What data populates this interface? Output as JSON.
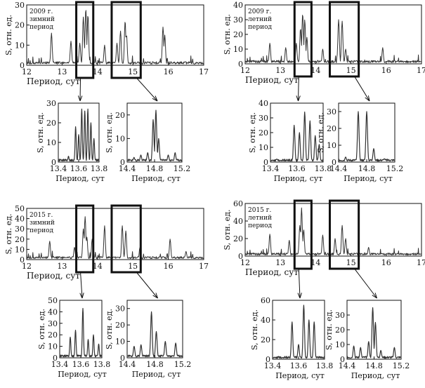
{
  "figure": {
    "x_label": "Период, сут",
    "y_label": "S, отн. ед."
  },
  "chart_data": [
    {
      "id": "w2009-main",
      "type": "line",
      "panel": "main",
      "group": "w2009",
      "annotation": [
        "2009 г.",
        "зимний",
        "период"
      ],
      "xlim": [
        12,
        17
      ],
      "ylim": [
        0,
        30
      ],
      "xticks": [
        12,
        13,
        14,
        15,
        16,
        17
      ],
      "yticks": [
        0,
        10,
        20,
        30
      ],
      "peaks": [
        [
          12.7,
          16
        ],
        [
          13.25,
          12
        ],
        [
          13.5,
          11
        ],
        [
          13.6,
          24
        ],
        [
          13.67,
          28
        ],
        [
          13.73,
          25
        ],
        [
          14.2,
          10
        ],
        [
          14.55,
          11
        ],
        [
          14.65,
          17
        ],
        [
          14.78,
          22
        ],
        [
          14.82,
          15
        ],
        [
          15.85,
          19
        ],
        [
          15.9,
          15
        ]
      ],
      "highlight_boxes": [
        [
          13.4,
          13.88
        ],
        [
          14.4,
          15.22
        ]
      ]
    },
    {
      "id": "s2009-main",
      "type": "line",
      "panel": "main",
      "group": "s2009",
      "annotation": [
        "2009 г.",
        "летний",
        "период"
      ],
      "xlim": [
        12,
        17
      ],
      "ylim": [
        0,
        40
      ],
      "xticks": [
        12,
        13,
        14,
        15,
        16,
        17
      ],
      "yticks": [
        0,
        10,
        20,
        30,
        40
      ],
      "peaks": [
        [
          12.7,
          14
        ],
        [
          13.15,
          11
        ],
        [
          13.45,
          14
        ],
        [
          13.57,
          24
        ],
        [
          13.63,
          34
        ],
        [
          13.69,
          30
        ],
        [
          13.75,
          18
        ],
        [
          14.2,
          10
        ],
        [
          14.65,
          30
        ],
        [
          14.75,
          29
        ],
        [
          14.85,
          10
        ],
        [
          15.9,
          11
        ]
      ],
      "highlight_boxes": [
        [
          13.4,
          13.88
        ],
        [
          14.4,
          15.22
        ]
      ]
    },
    {
      "id": "w2009-zoom1",
      "type": "line",
      "panel": "zoom",
      "group": "w2009",
      "xlim": [
        13.4,
        13.8
      ],
      "ylim": [
        0,
        30
      ],
      "xticks": [
        13.4,
        13.6,
        13.8
      ],
      "yticks": [
        0,
        10,
        20,
        30
      ],
      "peaks": [
        [
          13.5,
          3
        ],
        [
          13.57,
          18
        ],
        [
          13.6,
          14
        ],
        [
          13.63,
          27
        ],
        [
          13.66,
          26
        ],
        [
          13.69,
          27
        ],
        [
          13.72,
          20
        ],
        [
          13.75,
          12
        ]
      ]
    },
    {
      "id": "w2009-zoom2",
      "type": "line",
      "panel": "zoom",
      "group": "w2009",
      "xlim": [
        14.4,
        15.2
      ],
      "ylim": [
        0,
        25
      ],
      "xticks": [
        14.4,
        14.8,
        15.2
      ],
      "yticks": [
        0,
        10,
        20
      ],
      "peaks": [
        [
          14.5,
          2
        ],
        [
          14.6,
          3
        ],
        [
          14.7,
          4
        ],
        [
          14.78,
          18
        ],
        [
          14.82,
          22
        ],
        [
          14.86,
          10
        ],
        [
          15.0,
          3
        ],
        [
          15.1,
          4
        ]
      ]
    },
    {
      "id": "s2009-zoom1",
      "type": "line",
      "panel": "zoom",
      "group": "s2009",
      "xlim": [
        13.4,
        13.8
      ],
      "ylim": [
        0,
        40
      ],
      "xticks": [
        13.4,
        13.6,
        13.8
      ],
      "yticks": [
        0,
        10,
        20,
        30,
        40
      ],
      "peaks": [
        [
          13.45,
          2
        ],
        [
          13.58,
          25
        ],
        [
          13.62,
          20
        ],
        [
          13.66,
          34
        ],
        [
          13.7,
          28
        ],
        [
          13.74,
          18
        ],
        [
          13.77,
          12
        ]
      ]
    },
    {
      "id": "s2009-zoom2",
      "type": "line",
      "panel": "zoom",
      "group": "s2009",
      "xlim": [
        14.4,
        15.2
      ],
      "ylim": [
        0,
        35
      ],
      "xticks": [
        14.4,
        14.8,
        15.2
      ],
      "yticks": [
        0,
        10,
        20,
        30
      ],
      "peaks": [
        [
          14.5,
          3
        ],
        [
          14.68,
          30
        ],
        [
          14.8,
          30
        ],
        [
          14.9,
          8
        ],
        [
          15.05,
          2
        ]
      ]
    },
    {
      "id": "w2015-main",
      "type": "line",
      "panel": "main",
      "group": "w2015",
      "annotation": [
        "2015 г.",
        "зимний",
        "период"
      ],
      "xlim": [
        12,
        17
      ],
      "ylim": [
        0,
        50
      ],
      "xticks": [
        12,
        13,
        14,
        15,
        16,
        17
      ],
      "yticks": [
        0,
        10,
        20,
        30,
        40,
        50
      ],
      "peaks": [
        [
          12.65,
          18
        ],
        [
          13.35,
          12
        ],
        [
          13.6,
          30
        ],
        [
          13.65,
          42
        ],
        [
          13.7,
          22
        ],
        [
          13.85,
          20
        ],
        [
          14.2,
          33
        ],
        [
          14.7,
          33
        ],
        [
          14.8,
          28
        ],
        [
          15.2,
          12
        ],
        [
          16.05,
          20
        ],
        [
          16.5,
          8
        ]
      ],
      "highlight_boxes": [
        [
          13.4,
          13.88
        ],
        [
          14.4,
          15.22
        ]
      ]
    },
    {
      "id": "s2015-main",
      "type": "line",
      "panel": "main",
      "group": "s2015",
      "annotation": [
        "2015 г.",
        "летний",
        "период"
      ],
      "xlim": [
        12,
        17
      ],
      "ylim": [
        0,
        60
      ],
      "xticks": [
        12,
        13,
        14,
        15,
        16,
        17
      ],
      "yticks": [
        0,
        20,
        40,
        60
      ],
      "peaks": [
        [
          12.7,
          25
        ],
        [
          13.25,
          18
        ],
        [
          13.55,
          35
        ],
        [
          13.6,
          55
        ],
        [
          13.66,
          30
        ],
        [
          14.2,
          24
        ],
        [
          14.55,
          20
        ],
        [
          14.75,
          35
        ],
        [
          14.85,
          20
        ],
        [
          15.5,
          10
        ]
      ],
      "highlight_boxes": [
        [
          13.4,
          13.88
        ],
        [
          14.4,
          15.22
        ]
      ]
    },
    {
      "id": "w2015-zoom1",
      "type": "line",
      "panel": "zoom",
      "group": "w2015",
      "xlim": [
        13.4,
        13.8
      ],
      "ylim": [
        0,
        50
      ],
      "xticks": [
        13.4,
        13.6,
        13.8
      ],
      "yticks": [
        0,
        10,
        20,
        30,
        40,
        50
      ],
      "peaks": [
        [
          13.5,
          18
        ],
        [
          13.55,
          24
        ],
        [
          13.62,
          43
        ],
        [
          13.67,
          16
        ],
        [
          13.72,
          20
        ],
        [
          13.77,
          12
        ]
      ]
    },
    {
      "id": "w2015-zoom2",
      "type": "line",
      "panel": "zoom",
      "group": "w2015",
      "xlim": [
        14.4,
        15.2
      ],
      "ylim": [
        0,
        35
      ],
      "xticks": [
        14.4,
        14.8,
        15.2
      ],
      "yticks": [
        0,
        10,
        20,
        30
      ],
      "peaks": [
        [
          14.5,
          7
        ],
        [
          14.6,
          8
        ],
        [
          14.75,
          28
        ],
        [
          14.82,
          16
        ],
        [
          14.95,
          10
        ],
        [
          15.1,
          9
        ]
      ]
    },
    {
      "id": "s2015-zoom1",
      "type": "line",
      "panel": "zoom",
      "group": "s2015",
      "xlim": [
        13.4,
        13.8
      ],
      "ylim": [
        0,
        60
      ],
      "xticks": [
        13.4,
        13.6,
        13.8
      ],
      "yticks": [
        0,
        20,
        40,
        60
      ],
      "peaks": [
        [
          13.55,
          38
        ],
        [
          13.6,
          15
        ],
        [
          13.64,
          55
        ],
        [
          13.68,
          40
        ],
        [
          13.72,
          38
        ]
      ]
    },
    {
      "id": "s2015-zoom2",
      "type": "line",
      "panel": "zoom",
      "group": "s2015",
      "xlim": [
        14.4,
        15.2
      ],
      "ylim": [
        0,
        40
      ],
      "xticks": [
        14.4,
        14.8,
        15.2
      ],
      "yticks": [
        0,
        10,
        20,
        30
      ],
      "peaks": [
        [
          14.5,
          9
        ],
        [
          14.6,
          8
        ],
        [
          14.72,
          12
        ],
        [
          14.78,
          35
        ],
        [
          14.82,
          25
        ],
        [
          14.9,
          6
        ],
        [
          15.1,
          8
        ]
      ]
    }
  ]
}
